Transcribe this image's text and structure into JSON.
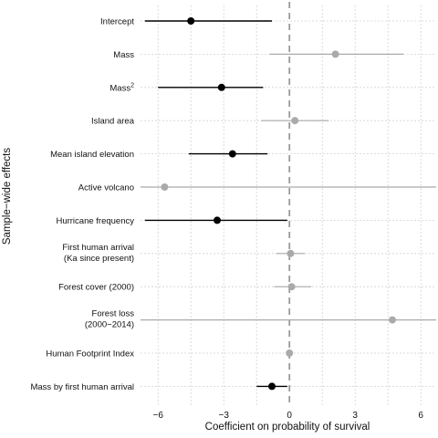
{
  "chart_data": {
    "type": "forest",
    "title": "",
    "xlabel": "Coefficient on probability of survival",
    "ylabel": "Sample−wide effects",
    "xlim": [
      -6.8,
      6.7
    ],
    "xticks": [
      -6,
      -3,
      0,
      3,
      6
    ],
    "xtick_labels": [
      "−6",
      "−3",
      "0",
      "3",
      "6"
    ],
    "reference_line": 0,
    "grid": true,
    "colors": {
      "significant": "#000000",
      "nonsignificant": "#aaaaaa",
      "reference": "#999999",
      "grid": "#d2d2d2"
    },
    "rows": [
      {
        "label": "Intercept",
        "label_line2": "",
        "superscript": "",
        "estimate": -4.5,
        "lower": -6.6,
        "upper": -0.8,
        "significant": true
      },
      {
        "label": "Mass",
        "label_line2": "",
        "superscript": "",
        "estimate": 2.1,
        "lower": -0.9,
        "upper": 5.2,
        "significant": false
      },
      {
        "label": "Mass",
        "label_line2": "",
        "superscript": "2",
        "estimate": -3.1,
        "lower": -6.0,
        "upper": -1.2,
        "significant": true
      },
      {
        "label": "Island area",
        "label_line2": "",
        "superscript": "",
        "estimate": 0.25,
        "lower": -1.3,
        "upper": 1.8,
        "significant": false
      },
      {
        "label": "Mean island elevation",
        "label_line2": "",
        "superscript": "",
        "estimate": -2.6,
        "lower": -4.6,
        "upper": -1.0,
        "significant": true
      },
      {
        "label": "Active volcano",
        "label_line2": "",
        "superscript": "",
        "estimate": -5.7,
        "lower": -6.8,
        "upper": 6.7,
        "significant": false
      },
      {
        "label": "Hurricane frequency",
        "label_line2": "",
        "superscript": "",
        "estimate": -3.3,
        "lower": -6.6,
        "upper": -0.1,
        "significant": true
      },
      {
        "label": "First human arrival",
        "label_line2": "(Ka since present)",
        "superscript": "",
        "estimate": 0.05,
        "lower": -0.6,
        "upper": 0.7,
        "significant": false
      },
      {
        "label": "Forest cover (2000)",
        "label_line2": "",
        "superscript": "",
        "estimate": 0.1,
        "lower": -0.7,
        "upper": 1.0,
        "significant": false
      },
      {
        "label": "Forest loss",
        "label_line2": "(2000−2014)",
        "superscript": "",
        "estimate": 4.7,
        "lower": -6.8,
        "upper": 6.7,
        "significant": false
      },
      {
        "label": "Human Footprint Index",
        "label_line2": "",
        "superscript": "",
        "estimate": 0.0,
        "lower": -0.1,
        "upper": 0.1,
        "significant": false
      },
      {
        "label": "Mass by first human arrival",
        "label_line2": "",
        "superscript": "",
        "estimate": -0.8,
        "lower": -1.5,
        "upper": -0.1,
        "significant": true
      }
    ]
  }
}
